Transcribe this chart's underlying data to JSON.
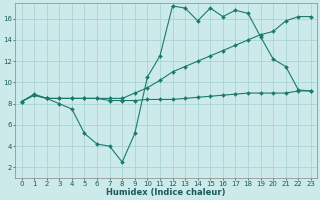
{
  "xlabel": "Humidex (Indice chaleur)",
  "background_color": "#cceaea",
  "grid_color": "#aad4d4",
  "line_color": "#1a7a6e",
  "xlim": [
    -0.5,
    23.5
  ],
  "ylim": [
    1.0,
    17.5
  ],
  "x_ticks": [
    0,
    1,
    2,
    3,
    4,
    5,
    6,
    7,
    8,
    9,
    10,
    11,
    12,
    13,
    14,
    15,
    16,
    17,
    18,
    19,
    20,
    21,
    22,
    23
  ],
  "y_ticks": [
    2,
    4,
    6,
    8,
    10,
    12,
    14,
    16
  ],
  "line1_x": [
    0,
    1,
    2,
    3,
    4,
    5,
    6,
    7,
    8,
    9,
    10,
    11,
    12,
    13,
    14,
    15,
    16,
    17,
    18,
    19,
    20,
    21,
    22,
    23
  ],
  "line1_y": [
    8.2,
    8.9,
    8.5,
    8.0,
    7.5,
    5.2,
    4.2,
    4.0,
    2.5,
    5.2,
    10.5,
    12.5,
    17.2,
    17.0,
    15.8,
    17.0,
    16.2,
    16.8,
    16.5,
    14.3,
    12.2,
    11.5,
    9.3,
    9.2
  ],
  "line2_x": [
    0,
    1,
    2,
    3,
    4,
    5,
    6,
    7,
    8,
    9,
    10,
    11,
    12,
    13,
    14,
    15,
    16,
    17,
    18,
    19,
    20,
    21,
    22,
    23
  ],
  "line2_y": [
    8.2,
    8.8,
    8.5,
    8.5,
    8.5,
    8.5,
    8.5,
    8.3,
    8.3,
    8.3,
    8.4,
    8.4,
    8.4,
    8.5,
    8.6,
    8.7,
    8.8,
    8.9,
    9.0,
    9.0,
    9.0,
    9.0,
    9.2,
    9.2
  ],
  "line3_x": [
    0,
    1,
    2,
    3,
    4,
    5,
    6,
    7,
    8,
    9,
    10,
    11,
    12,
    13,
    14,
    15,
    16,
    17,
    18,
    19,
    20,
    21,
    22,
    23
  ],
  "line3_y": [
    8.2,
    8.8,
    8.5,
    8.5,
    8.5,
    8.5,
    8.5,
    8.5,
    8.5,
    9.0,
    9.5,
    10.2,
    11.0,
    11.5,
    12.0,
    12.5,
    13.0,
    13.5,
    14.0,
    14.5,
    14.8,
    15.8,
    16.2,
    16.2
  ],
  "xlabel_fontsize": 6.0,
  "tick_fontsize": 5.0
}
